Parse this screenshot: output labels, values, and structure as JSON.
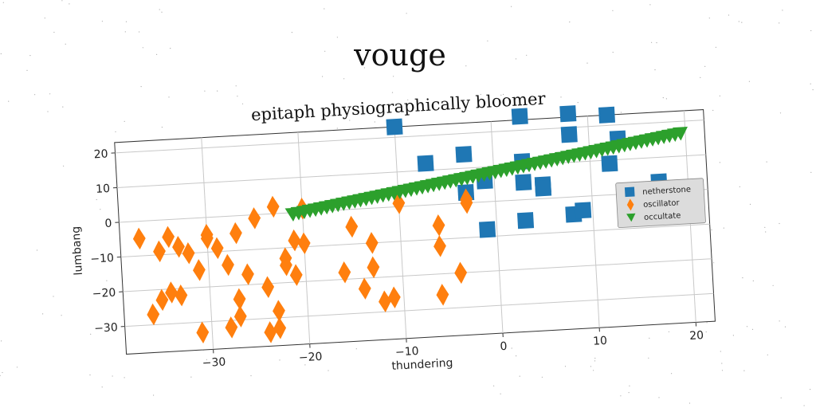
{
  "suptitle": "vouge",
  "chart_data": {
    "type": "scatter",
    "title": "epitaph physiographically bloomer",
    "xlabel": "thundering",
    "ylabel": "lumbang",
    "xlim": [
      -39,
      22
    ],
    "ylim": [
      -38,
      23
    ],
    "xticks": [
      -30,
      -20,
      -10,
      0,
      10,
      20
    ],
    "yticks": [
      -30,
      -20,
      -10,
      0,
      10,
      20
    ],
    "xtick_labels": [
      "−30",
      "−20",
      "−10",
      "0",
      "10",
      "20"
    ],
    "ytick_labels": [
      "−30",
      "−20",
      "−10",
      "0",
      "10",
      "20"
    ],
    "grid": true,
    "legend_position": "right",
    "series": [
      {
        "name": "netherstone",
        "marker": "square",
        "color": "#1f77b4",
        "points": [
          [
            -10,
            23
          ],
          [
            -7,
            12
          ],
          [
            -3,
            14
          ],
          [
            -3,
            3
          ],
          [
            -1,
            6
          ],
          [
            -1,
            -8
          ],
          [
            3,
            24
          ],
          [
            3,
            11
          ],
          [
            3,
            5
          ],
          [
            3,
            -6
          ],
          [
            5,
            4
          ],
          [
            5,
            3
          ],
          [
            8,
            24
          ],
          [
            8,
            18
          ],
          [
            8,
            -5
          ],
          [
            9,
            -4
          ],
          [
            12,
            23
          ],
          [
            12,
            9
          ],
          [
            13,
            16
          ],
          [
            17,
            3
          ]
        ]
      },
      {
        "name": "oscillator",
        "marker": "diamond",
        "color": "#ff7f0e",
        "points": [
          [
            -37,
            -5
          ],
          [
            -36,
            -27
          ],
          [
            -35,
            -23
          ],
          [
            -35,
            -9
          ],
          [
            -34,
            -21
          ],
          [
            -34,
            -5
          ],
          [
            -33,
            -8
          ],
          [
            -33,
            -22
          ],
          [
            -32,
            -10
          ],
          [
            -31,
            -33
          ],
          [
            -31,
            -15
          ],
          [
            -30,
            -5
          ],
          [
            -30,
            -6
          ],
          [
            -29,
            -9
          ],
          [
            -28,
            -32
          ],
          [
            -28,
            -14
          ],
          [
            -27,
            -24
          ],
          [
            -27,
            -29
          ],
          [
            -27,
            -5
          ],
          [
            -26,
            -17
          ],
          [
            -25,
            -1
          ],
          [
            -24,
            -34
          ],
          [
            -24,
            -21
          ],
          [
            -23,
            2
          ],
          [
            -23,
            -33
          ],
          [
            -23,
            -28
          ],
          [
            -22,
            -13
          ],
          [
            -22,
            -15
          ],
          [
            -21,
            -18
          ],
          [
            -21,
            -8
          ],
          [
            -20,
            -9
          ],
          [
            -20,
            1
          ],
          [
            -16,
            -18
          ],
          [
            -15,
            -5
          ],
          [
            -14,
            -23
          ],
          [
            -13,
            -10
          ],
          [
            -13,
            -17
          ],
          [
            -12,
            -27
          ],
          [
            -11,
            -26
          ],
          [
            -10,
            1
          ],
          [
            -6,
            -6
          ],
          [
            -6,
            -12
          ],
          [
            -6,
            -26
          ],
          [
            -4,
            -20
          ],
          [
            -3,
            1
          ],
          [
            -3,
            0
          ]
        ]
      },
      {
        "name": "occultate",
        "marker": "triangle-down",
        "color": "#2ca02c",
        "x_range": [
          -21,
          19.5
        ],
        "y_range": [
          -0.5,
          16.5
        ],
        "count": 70
      }
    ]
  }
}
